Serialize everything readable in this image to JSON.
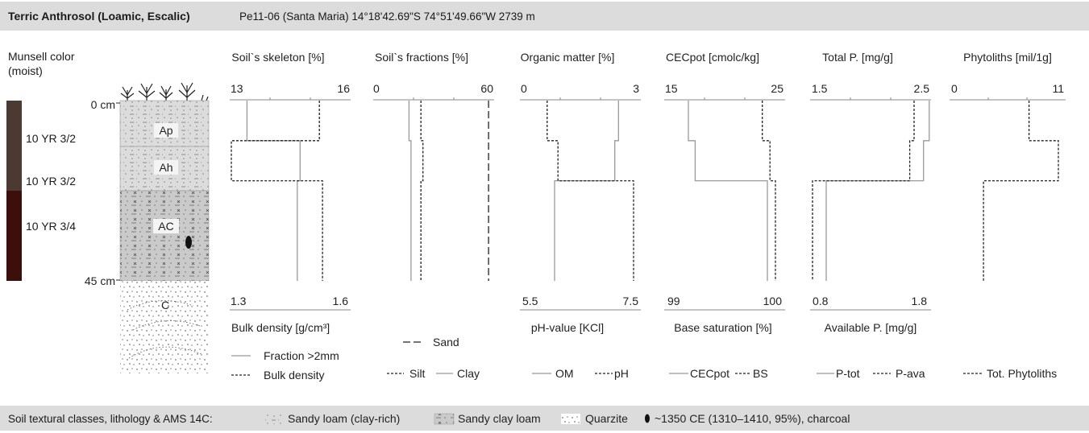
{
  "header": {
    "title": "Terric Anthrosol (Loamic, Escalic)",
    "site": "Pe11-06 (Santa Maria) 14°18'42.69\"S 74°51'49.66\"W 2739 m"
  },
  "munsell": {
    "label_line1": "Munsell color",
    "label_line2": "(moist)",
    "colors": [
      "10 YR 3/2",
      "10 YR 3/2",
      "10 YR 3/4"
    ],
    "swatch_colors": [
      "#4a3a32",
      "#3c0f0a"
    ]
  },
  "profile": {
    "depth_top": "0 cm",
    "depth_bottom": "45 cm",
    "horizons": [
      "Ap",
      "Ah",
      "AC",
      "C"
    ]
  },
  "panels": {
    "skeleton": {
      "title": "Soil`s skeleton [%]",
      "top_min": "13",
      "top_max": "16",
      "bottom_min": "1.3",
      "bottom_max": "1.6",
      "bottom_label": "Bulk density [g/cm³]"
    },
    "fractions": {
      "title": "Soil`s fractions [%]",
      "top_min": "0",
      "top_max": "60"
    },
    "organic": {
      "title": "Organic matter [%]",
      "top_min": "0",
      "top_max": "3",
      "bottom_min": "5.5",
      "bottom_max": "7.5",
      "bottom_label": "pH-value [KCl]"
    },
    "cec": {
      "title": "CECpot [cmolc/kg]",
      "top_min": "15",
      "top_max": "25",
      "bottom_min": "99",
      "bottom_max": "100",
      "bottom_label": "Base saturation [%]"
    },
    "totalp": {
      "title": "Total P. [mg/g]",
      "top_min": "1.5",
      "top_max": "2.5",
      "bottom_min": "0.8",
      "bottom_max": "1.8",
      "bottom_label": "Available P. [mg/g]"
    },
    "phyto": {
      "title": "Phytoliths [mil/1g]",
      "top_min": "0",
      "top_max": "11"
    }
  },
  "legends": {
    "skeleton_solid": "Fraction >2mm",
    "skeleton_dashed": "Bulk density",
    "sand": "Sand",
    "silt": "Silt",
    "clay": "Clay",
    "om": "OM",
    "ph": "pH",
    "cecpot": "CECpot",
    "bs": "BS",
    "ptot": "P-tot",
    "pava": "P-ava",
    "phyto": "Tot. Phytoliths"
  },
  "footer": {
    "lead": "Soil textural classes, lithology & AMS 14C:",
    "item1": "Sandy loam (clay-rich)",
    "item2": "Sandy clay loam",
    "item3": "Quarzite",
    "item4": "~1350 CE (1310–1410, 95%), charcoal"
  },
  "chart_data": {
    "type": "line",
    "depth_unit": "cm",
    "depth_range": [
      0,
      45
    ],
    "horizon_boundaries_cm": [
      0,
      10,
      20,
      45
    ],
    "series": [
      {
        "name": "Fraction >2mm",
        "axis": "Soil`s skeleton [%]",
        "xlim": [
          13,
          16
        ],
        "values": [
          13.3,
          15.2,
          15.1
        ]
      },
      {
        "name": "Bulk density",
        "axis": "Bulk density [g/cm³]",
        "xlim": [
          1.3,
          1.6
        ],
        "values": [
          1.58,
          1.3,
          1.59
        ]
      },
      {
        "name": "Sand",
        "axis": "Soil`s fractions [%]",
        "xlim": [
          0,
          60
        ],
        "values": [
          58,
          58,
          58
        ]
      },
      {
        "name": "Silt",
        "axis": "Soil`s fractions [%]",
        "xlim": [
          0,
          60
        ],
        "values": [
          24,
          25,
          24
        ]
      },
      {
        "name": "Clay",
        "axis": "Soil`s fractions [%]",
        "xlim": [
          0,
          60
        ],
        "values": [
          18,
          19,
          19
        ]
      },
      {
        "name": "OM",
        "axis": "Organic matter [%]",
        "xlim": [
          0,
          3
        ],
        "values": [
          2.6,
          2.5,
          0.9
        ]
      },
      {
        "name": "pH",
        "axis": "pH-value [KCl]",
        "xlim": [
          5.5,
          7.5
        ],
        "values": [
          5.9,
          6.1,
          7.5
        ]
      },
      {
        "name": "CECpot",
        "axis": "CECpot [cmolc/kg]",
        "xlim": [
          15,
          25
        ],
        "values": [
          17.0,
          17.6,
          24.0
        ]
      },
      {
        "name": "BS",
        "axis": "Base saturation [%]",
        "xlim": [
          99,
          100
        ],
        "values": [
          99.88,
          99.95,
          100.0
        ]
      },
      {
        "name": "P-tot",
        "axis": "Total P. [mg/g]",
        "xlim": [
          1.5,
          2.5
        ],
        "values": [
          2.52,
          2.47,
          1.62
        ]
      },
      {
        "name": "P-ava",
        "axis": "Available P. [mg/g]",
        "xlim": [
          0.8,
          1.8
        ],
        "values": [
          1.72,
          1.68,
          0.8
        ]
      },
      {
        "name": "Tot. Phytoliths",
        "axis": "Phytoliths [mil/1g]",
        "xlim": [
          0,
          11
        ],
        "values": [
          7.7,
          10.6,
          3.2
        ]
      }
    ]
  }
}
